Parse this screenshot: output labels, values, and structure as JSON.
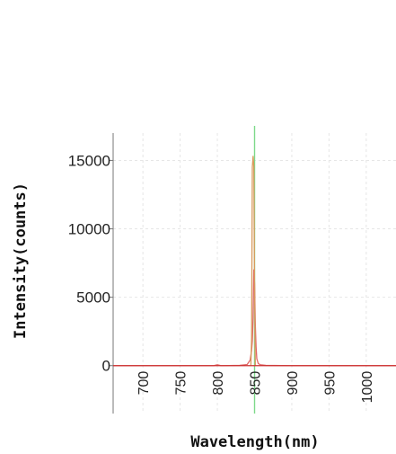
{
  "chart_data": {
    "type": "line",
    "title": "",
    "xlabel": "Wavelength(nm)",
    "ylabel": "Intensity(counts)",
    "xlim": [
      660,
      1040
    ],
    "ylim": [
      -3500,
      17000
    ],
    "x_ticks": [
      700,
      750,
      800,
      850,
      900,
      950,
      1000
    ],
    "x_tick_labels": [
      "700",
      "750",
      "800",
      "850",
      "900",
      "950",
      "1000"
    ],
    "y_ticks": [
      0,
      5000,
      10000,
      15000
    ],
    "y_tick_labels": [
      "0",
      "5000",
      "10000",
      "15000"
    ],
    "grid": true,
    "marker_line": {
      "x": 850,
      "color": "#7ed98a"
    },
    "series": [
      {
        "color": "#e06666",
        "x": [
          660,
          700,
          750,
          795,
          800,
          805,
          830,
          840,
          844,
          846,
          847,
          848,
          849,
          850,
          851,
          852,
          853,
          855,
          858,
          865,
          900,
          950,
          1000,
          1040
        ],
        "values": [
          0,
          0,
          0,
          0,
          60,
          0,
          20,
          80,
          400,
          1100,
          1800,
          3500,
          7000,
          6000,
          3000,
          1400,
          500,
          150,
          60,
          20,
          0,
          0,
          0,
          0
        ]
      },
      {
        "color": "#d99a5c",
        "x": [
          845,
          846,
          847,
          848,
          849,
          850,
          851
        ],
        "values": [
          0,
          2000,
          14500,
          15300,
          14600,
          6000,
          0
        ]
      }
    ]
  }
}
